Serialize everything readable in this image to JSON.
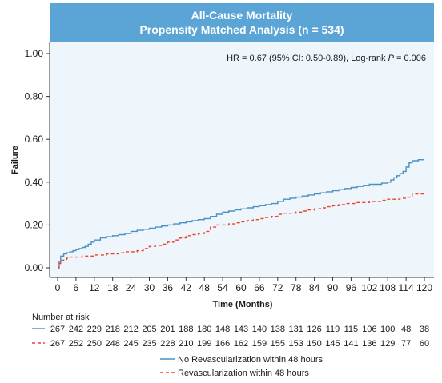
{
  "chart_data": {
    "type": "line",
    "title": "All-Cause Mortality",
    "subtitle": "Propensity Matched Analysis (n = 534)",
    "xlabel": "Time (Months)",
    "ylabel": "Failure",
    "xlim": [
      0,
      122
    ],
    "ylim": [
      0,
      1.0
    ],
    "x_ticks": [
      0,
      6,
      12,
      18,
      24,
      30,
      36,
      42,
      48,
      54,
      60,
      66,
      72,
      78,
      84,
      90,
      96,
      102,
      108,
      114,
      120
    ],
    "y_ticks": [
      "0.00",
      "0.20",
      "0.40",
      "0.60",
      "0.80",
      "1.00"
    ],
    "annotation": {
      "prefix": "HR = 0.67 (95% CI: 0.50-0.89), Log-rank ",
      "italic": "P",
      "suffix": " = 0.006"
    },
    "series": [
      {
        "name": "No Revascularization within 48 hours",
        "color": "#4a90c4",
        "dash": "solid",
        "x": [
          0,
          0.5,
          1,
          2,
          3,
          4,
          5,
          6,
          7,
          8,
          9,
          10,
          11,
          12,
          14,
          16,
          18,
          20,
          22,
          24,
          26,
          28,
          30,
          32,
          34,
          36,
          38,
          40,
          42,
          44,
          46,
          48,
          50,
          52,
          54,
          56,
          58,
          60,
          62,
          64,
          66,
          68,
          70,
          72,
          74,
          76,
          78,
          80,
          82,
          84,
          86,
          88,
          90,
          92,
          94,
          96,
          98,
          100,
          102,
          104,
          106,
          108,
          109,
          110,
          111,
          112,
          113,
          114,
          115,
          116,
          118,
          120
        ],
        "y": [
          0.0,
          0.03,
          0.055,
          0.065,
          0.07,
          0.075,
          0.08,
          0.085,
          0.09,
          0.095,
          0.1,
          0.11,
          0.12,
          0.13,
          0.14,
          0.145,
          0.15,
          0.155,
          0.16,
          0.17,
          0.175,
          0.18,
          0.185,
          0.19,
          0.195,
          0.2,
          0.205,
          0.21,
          0.215,
          0.22,
          0.225,
          0.23,
          0.24,
          0.25,
          0.26,
          0.265,
          0.27,
          0.275,
          0.28,
          0.285,
          0.29,
          0.295,
          0.3,
          0.31,
          0.32,
          0.325,
          0.33,
          0.335,
          0.34,
          0.345,
          0.35,
          0.355,
          0.36,
          0.365,
          0.37,
          0.375,
          0.38,
          0.385,
          0.39,
          0.39,
          0.395,
          0.4,
          0.41,
          0.42,
          0.43,
          0.44,
          0.45,
          0.47,
          0.49,
          0.5,
          0.505,
          0.505
        ]
      },
      {
        "name": "Revascularization within 48 hours",
        "color": "#e8452c",
        "dash": "dashed",
        "x": [
          0,
          0.5,
          1,
          2,
          3,
          4,
          6,
          8,
          10,
          12,
          14,
          16,
          18,
          20,
          22,
          24,
          26,
          28,
          30,
          32,
          34,
          36,
          38,
          40,
          42,
          44,
          46,
          48,
          50,
          52,
          54,
          56,
          58,
          60,
          62,
          64,
          66,
          68,
          70,
          72,
          74,
          76,
          78,
          80,
          82,
          84,
          86,
          88,
          90,
          92,
          94,
          96,
          98,
          100,
          102,
          104,
          106,
          108,
          110,
          112,
          114,
          116,
          118,
          120
        ],
        "y": [
          0.0,
          0.02,
          0.035,
          0.04,
          0.045,
          0.05,
          0.05,
          0.055,
          0.055,
          0.06,
          0.06,
          0.065,
          0.065,
          0.07,
          0.075,
          0.075,
          0.08,
          0.09,
          0.1,
          0.105,
          0.11,
          0.12,
          0.13,
          0.14,
          0.15,
          0.155,
          0.16,
          0.17,
          0.19,
          0.2,
          0.2,
          0.205,
          0.21,
          0.215,
          0.22,
          0.225,
          0.23,
          0.235,
          0.24,
          0.25,
          0.255,
          0.255,
          0.26,
          0.265,
          0.27,
          0.275,
          0.28,
          0.285,
          0.29,
          0.295,
          0.3,
          0.3,
          0.305,
          0.305,
          0.31,
          0.31,
          0.315,
          0.32,
          0.32,
          0.325,
          0.33,
          0.345,
          0.345,
          0.345
        ]
      }
    ],
    "risk_table": {
      "title": "Number at risk",
      "rows": [
        {
          "series": "No Revascularization within 48 hours",
          "values": [
            "267",
            "242",
            "229",
            "218",
            "212",
            "205",
            "201",
            "188",
            "180",
            "148",
            "143",
            "140",
            "138",
            "131",
            "126",
            "119",
            "115",
            "106",
            "100",
            "48",
            "38"
          ]
        },
        {
          "series": "Revascularization within 48 hours",
          "values": [
            "267",
            "252",
            "250",
            "248",
            "245",
            "235",
            "228",
            "210",
            "199",
            "166",
            "162",
            "159",
            "155",
            "153",
            "150",
            "145",
            "141",
            "136",
            "129",
            "77",
            "60"
          ]
        }
      ]
    },
    "legend_position": "bottom"
  }
}
